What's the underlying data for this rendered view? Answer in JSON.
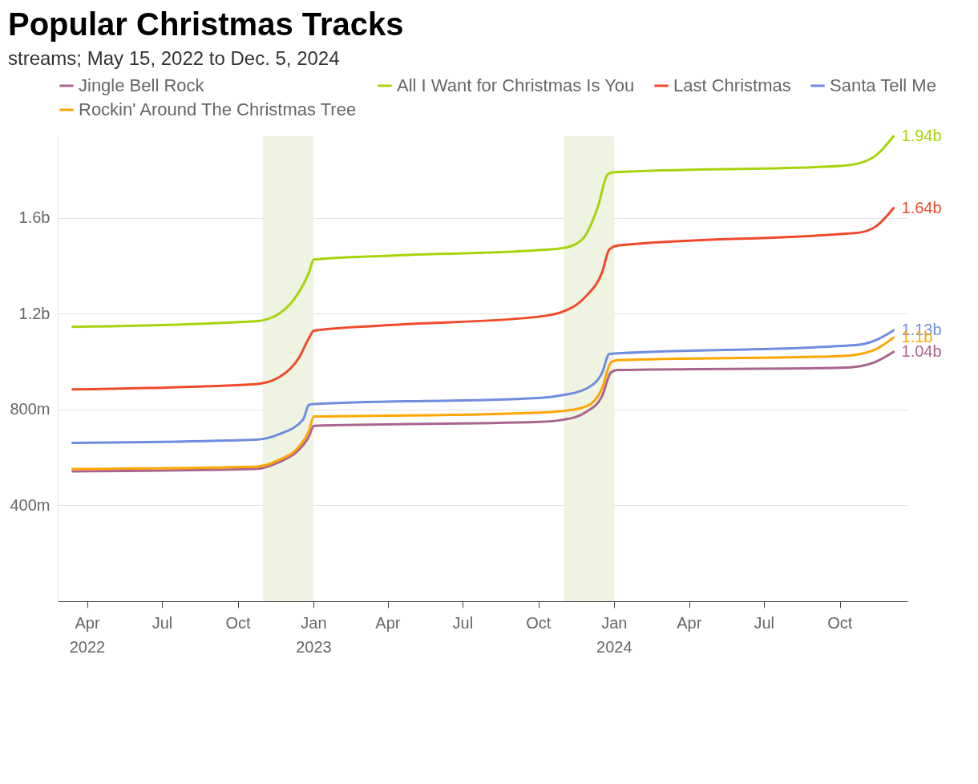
{
  "chart_data": {
    "type": "line",
    "title": "Popular Christmas Tracks",
    "subtitle": "streams; May 15, 2022 to Dec. 5, 2024",
    "xlim": [
      "2022-02-24",
      "2024-12-22"
    ],
    "xticks": [
      {
        "value": "2022-04-01",
        "label": "Apr\n2022"
      },
      {
        "value": "2022-07-01",
        "label": "Jul"
      },
      {
        "value": "2022-10-01",
        "label": "Oct"
      },
      {
        "value": "2023-01-01",
        "label": "Jan\n2023"
      },
      {
        "value": "2023-04-01",
        "label": "Apr"
      },
      {
        "value": "2023-07-01",
        "label": "Jul"
      },
      {
        "value": "2023-10-01",
        "label": "Oct"
      },
      {
        "value": "2024-01-01",
        "label": "Jan\n2024"
      },
      {
        "value": "2024-04-01",
        "label": "Apr"
      },
      {
        "value": "2024-07-01",
        "label": "Jul"
      },
      {
        "value": "2024-10-01",
        "label": "Oct"
      }
    ],
    "ylim": [
      0,
      1940000000
    ],
    "yticks": [
      {
        "value": 400000000,
        "label": "400m"
      },
      {
        "value": 800000000,
        "label": "800m"
      },
      {
        "value": 1200000000,
        "label": "1.2b"
      },
      {
        "value": 1600000000,
        "label": "1.6b"
      }
    ],
    "grid": "y",
    "legend": "top left",
    "line_style": "solid",
    "bands": [
      {
        "axis": "x",
        "from": "2022-10-31",
        "to": "2023-01-01",
        "label": null,
        "color": "#eef3e2"
      },
      {
        "axis": "x",
        "from": "2023-11-01",
        "to": "2024-01-01",
        "label": null,
        "color": "#eef3e2"
      }
    ],
    "series": [
      {
        "name": "Jingle Bell Rock",
        "color": "#a8648f",
        "x": [
          "2022-03-14",
          "2022-10-22",
          "2022-11-20",
          "2022-12-14",
          "2022-12-26",
          "2023-01-01",
          "2023-10-01",
          "2023-11-01",
          "2023-11-28",
          "2023-12-17",
          "2023-12-28",
          "2024-01-05",
          "2024-10-01",
          "2024-10-26",
          "2024-11-14",
          "2024-12-05"
        ],
        "values": [
          542000000,
          552000000,
          581000000,
          632000000,
          687000000,
          732000000,
          748000000,
          758000000,
          790000000,
          855000000,
          955000000,
          965000000,
          974000000,
          981000000,
          1000000000,
          1040000000
        ],
        "value_labels": [
          null,
          null,
          null,
          null,
          null,
          null,
          null,
          null,
          null,
          null,
          null,
          null,
          null,
          null,
          null,
          "1.04b"
        ]
      },
      {
        "name": "All I Want for Christmas Is You",
        "color": "#a6d40c",
        "x": [
          "2022-03-14",
          "2022-10-22",
          "2022-11-20",
          "2022-12-14",
          "2022-12-26",
          "2023-01-01",
          "2023-04-03",
          "2023-10-01",
          "2023-11-01",
          "2023-11-23",
          "2023-12-12",
          "2023-12-24",
          "2024-01-01",
          "2024-10-01",
          "2024-10-26",
          "2024-11-14",
          "2024-12-05"
        ],
        "values": [
          1145000000,
          1168000000,
          1200000000,
          1290000000,
          1370000000,
          1426000000,
          1442000000,
          1465000000,
          1474000000,
          1510000000,
          1645000000,
          1781000000,
          1790000000,
          1816000000,
          1829000000,
          1861000000,
          1940000000
        ],
        "value_labels": [
          null,
          null,
          null,
          null,
          null,
          null,
          null,
          null,
          null,
          null,
          null,
          null,
          null,
          null,
          null,
          null,
          "1.94b"
        ]
      },
      {
        "name": "Last Christmas",
        "color": "#f04a2c",
        "x": [
          "2022-03-14",
          "2022-10-22",
          "2022-11-20",
          "2022-12-14",
          "2022-12-26",
          "2023-01-01",
          "2023-04-03",
          "2023-10-01",
          "2023-11-01",
          "2023-11-28",
          "2023-12-17",
          "2023-12-26",
          "2024-01-05",
          "2024-10-01",
          "2024-10-26",
          "2024-11-14",
          "2024-12-05"
        ],
        "values": [
          884000000,
          906000000,
          935000000,
          1016000000,
          1097000000,
          1129000000,
          1152000000,
          1187000000,
          1210000000,
          1274000000,
          1371000000,
          1468000000,
          1484000000,
          1532000000,
          1539000000,
          1565000000,
          1640000000
        ],
        "value_labels": [
          null,
          null,
          null,
          null,
          null,
          null,
          null,
          null,
          null,
          null,
          null,
          null,
          null,
          null,
          null,
          null,
          "1.64b"
        ]
      },
      {
        "name": "Santa Tell Me",
        "color": "#6f8de0",
        "x": [
          "2022-03-14",
          "2022-10-22",
          "2022-11-20",
          "2022-12-19",
          "2022-12-26",
          "2023-01-01",
          "2023-10-01",
          "2023-11-01",
          "2023-11-28",
          "2023-12-17",
          "2023-12-26",
          "2024-10-01",
          "2024-10-26",
          "2024-11-14",
          "2024-12-05"
        ],
        "values": [
          661000000,
          674000000,
          697000000,
          758000000,
          819000000,
          823000000,
          848000000,
          861000000,
          887000000,
          952000000,
          1032000000,
          1065000000,
          1071000000,
          1090000000,
          1130000000
        ],
        "value_labels": [
          null,
          null,
          null,
          null,
          null,
          null,
          null,
          null,
          null,
          null,
          null,
          null,
          null,
          null,
          "1.13b"
        ]
      },
      {
        "name": "Rockin' Around The Christmas Tree",
        "color": "#ffa500",
        "x": [
          "2022-03-14",
          "2022-10-22",
          "2022-11-20",
          "2022-12-14",
          "2022-12-26",
          "2023-01-01",
          "2023-04-03",
          "2023-10-01",
          "2023-11-01",
          "2023-11-28",
          "2023-12-17",
          "2023-12-28",
          "2024-01-05",
          "2024-10-01",
          "2024-10-26",
          "2024-11-14",
          "2024-12-05"
        ],
        "values": [
          552000000,
          561000000,
          590000000,
          645000000,
          710000000,
          771000000,
          774000000,
          787000000,
          794000000,
          813000000,
          887000000,
          997000000,
          1006000000,
          1023000000,
          1032000000,
          1052000000,
          1100000000
        ],
        "value_labels": [
          null,
          null,
          null,
          null,
          null,
          null,
          null,
          null,
          null,
          null,
          null,
          null,
          null,
          null,
          null,
          null,
          "1.1b"
        ]
      }
    ]
  }
}
